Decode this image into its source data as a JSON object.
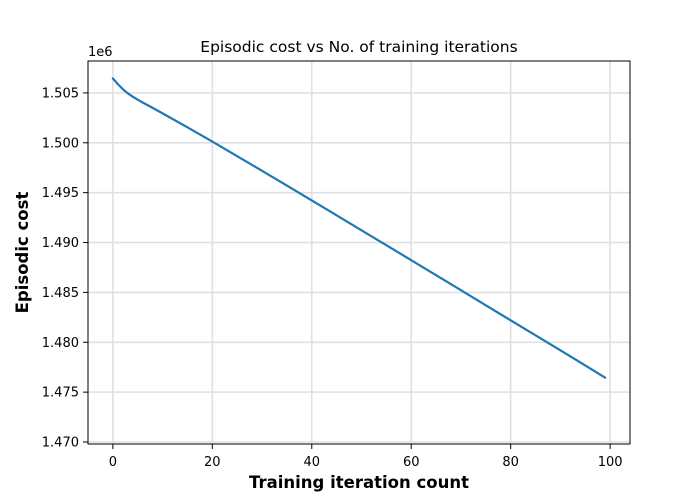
{
  "chart_data": {
    "type": "line",
    "title": "Episodic cost vs No. of training iterations",
    "xlabel": "Training iteration count",
    "ylabel": "Episodic cost",
    "y_offset_label": "1e6",
    "xlim": [
      -5,
      104
    ],
    "ylim": [
      1.4698,
      1.5082
    ],
    "x_ticks": [
      0,
      20,
      40,
      60,
      80,
      100
    ],
    "x_tick_labels": [
      "0",
      "20",
      "40",
      "60",
      "80",
      "100"
    ],
    "y_ticks": [
      1.47,
      1.475,
      1.48,
      1.485,
      1.49,
      1.495,
      1.5,
      1.505
    ],
    "y_tick_labels": [
      "1.470",
      "1.475",
      "1.480",
      "1.485",
      "1.490",
      "1.495",
      "1.500",
      "1.505"
    ],
    "grid": true,
    "color": "#1f77b4",
    "series": [
      {
        "name": "Episodic cost",
        "x": [
          0,
          1,
          2,
          3,
          4,
          5,
          6,
          8,
          10,
          15,
          20,
          25,
          30,
          35,
          40,
          45,
          50,
          55,
          60,
          65,
          70,
          75,
          80,
          85,
          90,
          95,
          99
        ],
        "y": [
          1.50645,
          1.50588,
          1.50538,
          1.50496,
          1.50462,
          1.50432,
          1.50404,
          1.5035,
          1.50295,
          1.50155,
          1.50012,
          1.49866,
          1.49719,
          1.49571,
          1.49422,
          1.49273,
          1.49123,
          1.48973,
          1.48823,
          1.48672,
          1.48522,
          1.48371,
          1.4822,
          1.4807,
          1.47919,
          1.47768,
          1.47645
        ]
      }
    ]
  }
}
